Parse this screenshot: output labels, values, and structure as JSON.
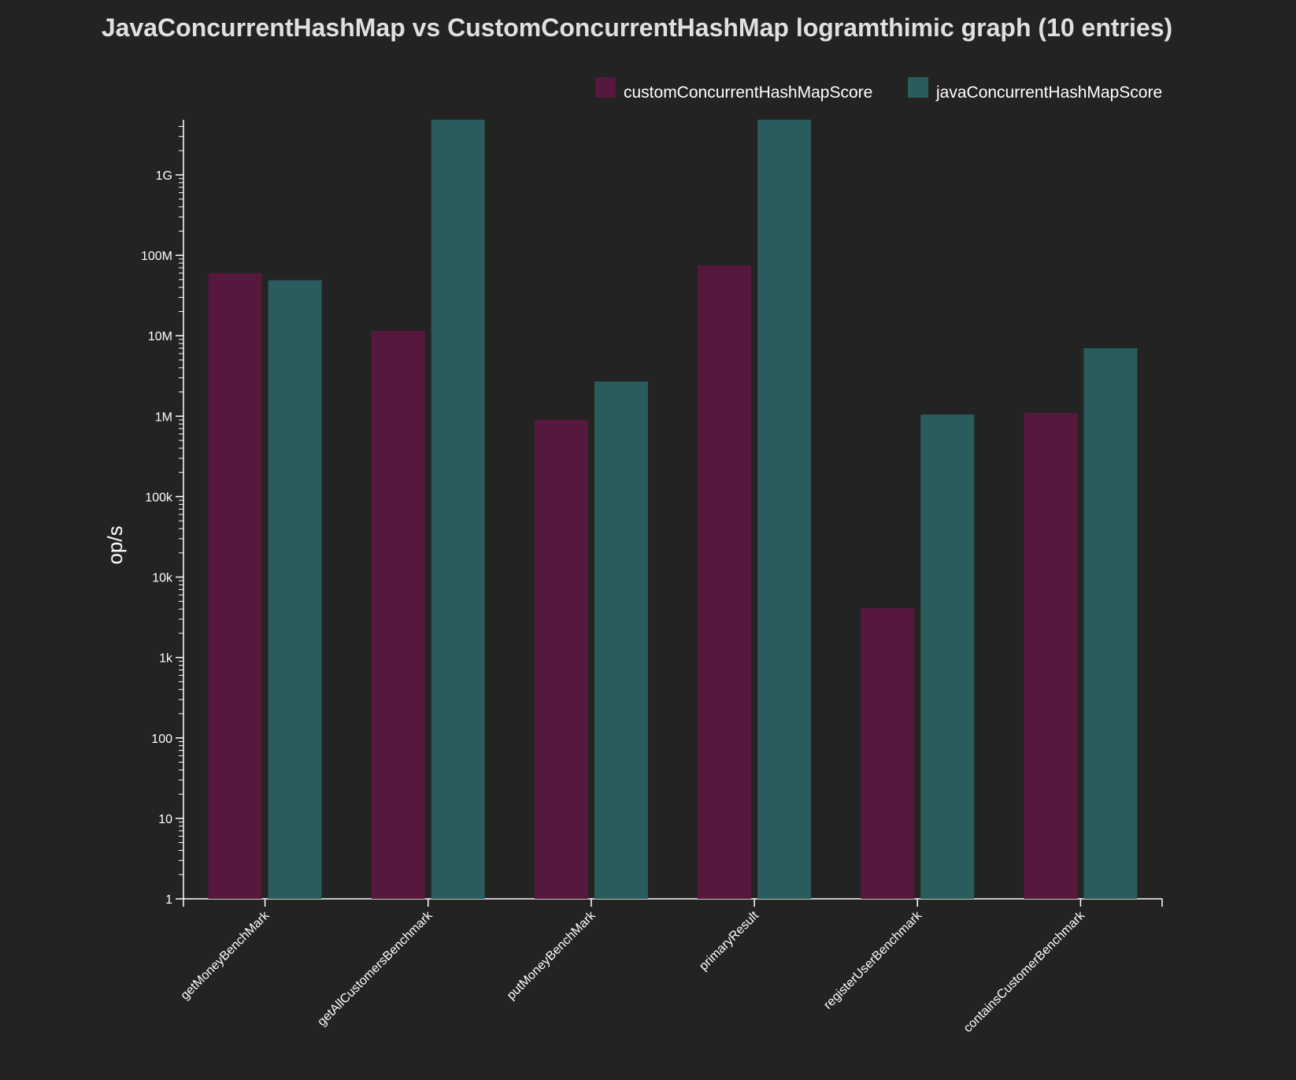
{
  "chart_data": {
    "type": "bar",
    "title": "JavaConcurrentHashMap vs CustomConcurrentHashMap logramthimic graph (10 entries)",
    "xlabel": "",
    "ylabel": "op/s",
    "yscale": "log",
    "ylim": [
      1,
      5000000000
    ],
    "yticks": [
      {
        "value": 1,
        "label": "1"
      },
      {
        "value": 10,
        "label": "10"
      },
      {
        "value": 100,
        "label": "100"
      },
      {
        "value": 1000,
        "label": "1k"
      },
      {
        "value": 10000,
        "label": "10k"
      },
      {
        "value": 100000,
        "label": "100k"
      },
      {
        "value": 1000000,
        "label": "1M"
      },
      {
        "value": 10000000,
        "label": "10M"
      },
      {
        "value": 100000000,
        "label": "100M"
      },
      {
        "value": 1000000000,
        "label": "1G"
      }
    ],
    "categories": [
      "getMoneyBenchMark",
      "getAllCustomersBenchmark",
      "putMoneyBenchMark",
      "primaryResult",
      "registerUserBenchmark",
      "containsCustomerBenchmark"
    ],
    "series": [
      {
        "name": "customConcurrentHashMapScore",
        "color": "#56193d",
        "values": [
          60000000,
          11500000,
          900000,
          75000000,
          4100,
          1100000
        ]
      },
      {
        "name": "javaConcurrentHashMapScore",
        "color": "#2b5c5d",
        "values": [
          49000000,
          5000000000,
          2700000,
          5000000000,
          1050000,
          7000000
        ]
      }
    ],
    "grid": false,
    "legend_position": "top-right"
  },
  "colors": {
    "background": "#232323",
    "axis": "#ffffff",
    "title": "#e0e0e0",
    "text": "#ffffff"
  }
}
